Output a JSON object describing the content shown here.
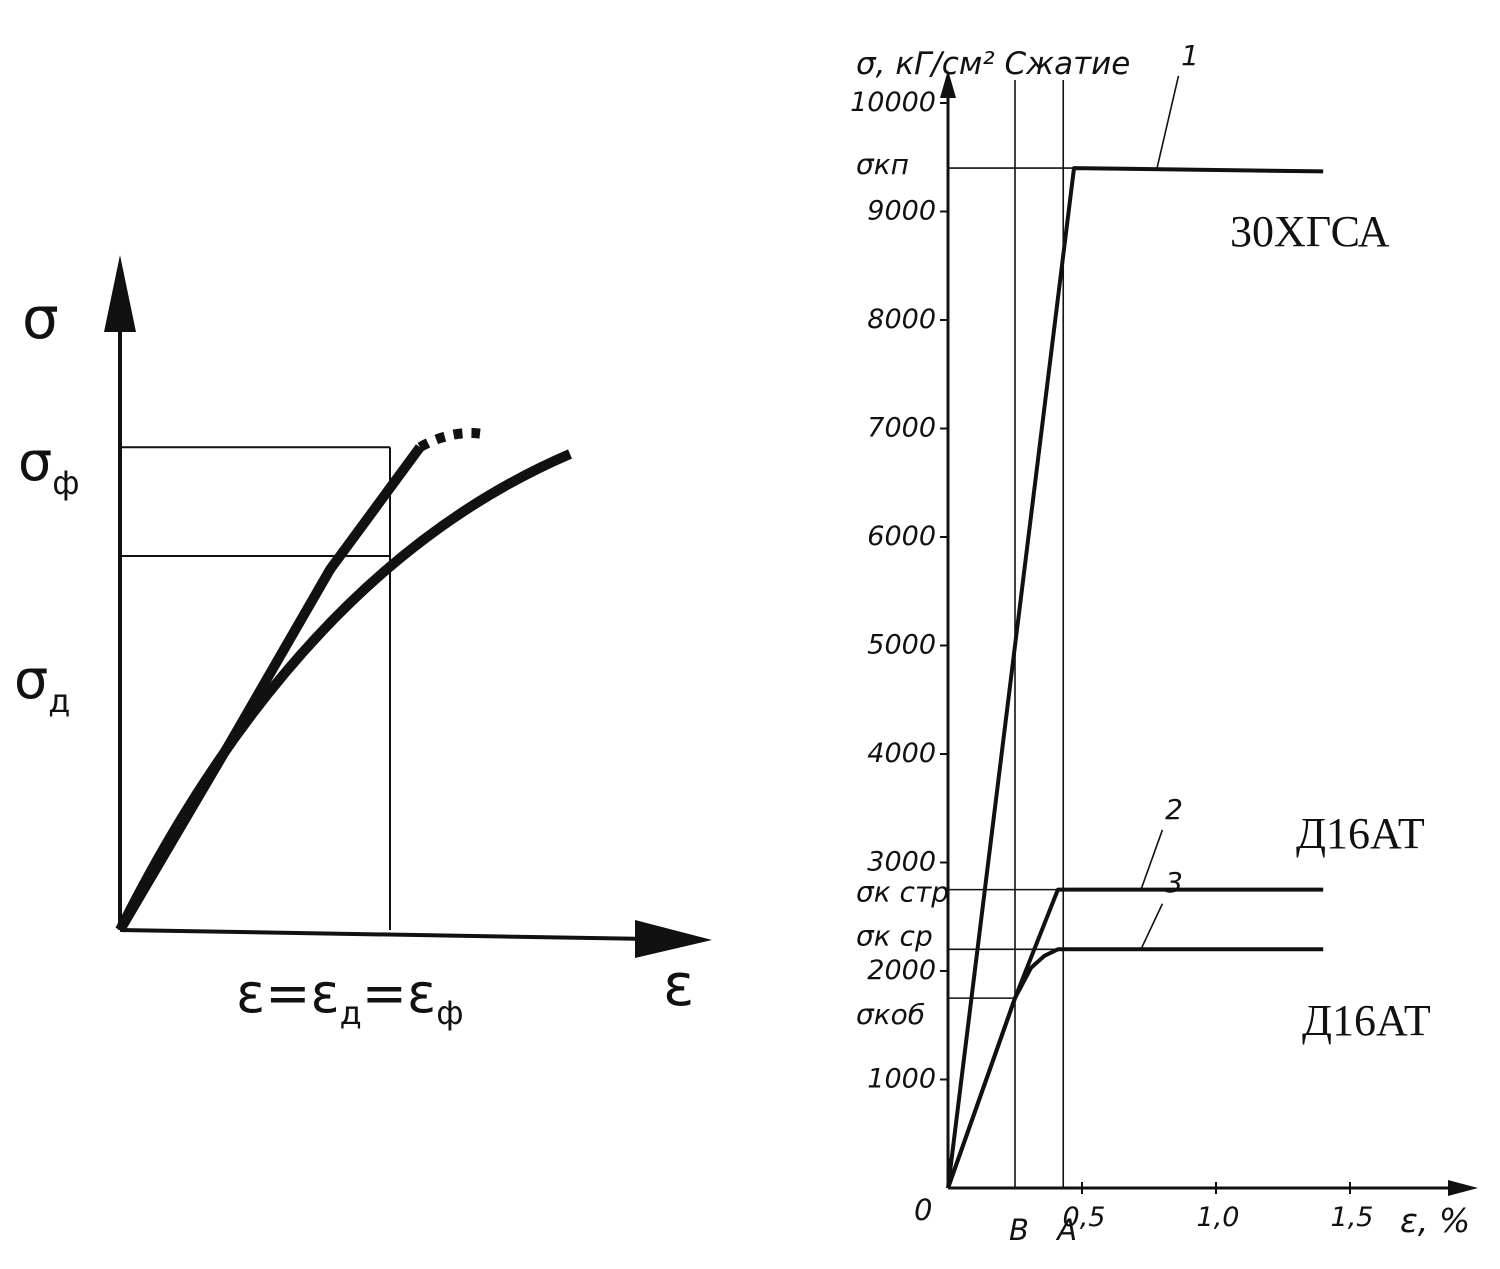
{
  "chart_data": [
    {
      "type": "line",
      "title": "",
      "y_symbol": "σ",
      "x_symbol": "ε",
      "y_labels": [
        {
          "main": "σ",
          "sub": "ф"
        },
        {
          "main": "σ",
          "sub": "д"
        }
      ],
      "x_label_parts": [
        {
          "main": "ε",
          "sub": ""
        },
        {
          "main": "=",
          "sub": ""
        },
        {
          "main": "ε",
          "sub": "д"
        },
        {
          "main": "=",
          "sub": ""
        },
        {
          "main": "ε",
          "sub": "ф"
        }
      ],
      "x_range": [
        0,
        1.0
      ],
      "y_range": [
        0,
        1.0
      ],
      "series": [
        {
          "style": "solid-then-dotted",
          "x": [
            0,
            0.18,
            0.35,
            0.5,
            0.6
          ],
          "y": [
            0,
            0.27,
            0.53,
            0.71,
            0.73
          ]
        },
        {
          "style": "solid",
          "x": [
            0,
            0.15,
            0.3,
            0.45,
            0.6,
            0.75
          ],
          "y": [
            0,
            0.25,
            0.43,
            0.55,
            0.63,
            0.7
          ]
        }
      ],
      "guide": {
        "x": 0.45,
        "y_upper": 0.71,
        "y_lower": 0.55
      }
    },
    {
      "type": "line",
      "title": "",
      "ylabel": "σ, кГ/см² Сжатие",
      "xlabel": "ε, %",
      "origin_label": "0",
      "xlim": [
        0,
        1.9
      ],
      "ylim": [
        0,
        10000
      ],
      "x_ticks": [
        0.5,
        1.0,
        1.5
      ],
      "x_tick_labels": [
        "0,5",
        "1,0",
        "1,5"
      ],
      "y_ticks": [
        1000,
        2000,
        3000,
        4000,
        5000,
        6000,
        7000,
        8000,
        9000,
        10000
      ],
      "y_tick_labels": [
        "1000",
        "2000",
        "3000",
        "4000",
        "5000",
        "6000",
        "7000",
        "8000",
        "9000",
        "10000"
      ],
      "marker_lines": [
        {
          "label": "B",
          "x": 0.25
        },
        {
          "label": "A",
          "x": 0.43
        }
      ],
      "stress_levels": [
        {
          "label": "σкп",
          "value": 9400
        },
        {
          "label": "σк стр",
          "value": 2750
        },
        {
          "label": "σк ср",
          "value": 2200
        },
        {
          "label": "σкоб",
          "value": 1750
        }
      ],
      "series": [
        {
          "curve": "1",
          "material": "30ХГСА",
          "x": [
            0,
            0.47,
            1.4
          ],
          "y": [
            0,
            9400,
            9370
          ]
        },
        {
          "curve": "2",
          "material": "Д16АТ",
          "x": [
            0,
            0.25,
            0.41,
            1.4
          ],
          "y": [
            0,
            1750,
            2750,
            2750
          ]
        },
        {
          "curve": "3",
          "material": "Д16АТ",
          "x": [
            0,
            0.25,
            0.31,
            0.36,
            0.41,
            1.4
          ],
          "y": [
            0,
            1750,
            2030,
            2140,
            2200,
            2200
          ]
        }
      ]
    }
  ]
}
